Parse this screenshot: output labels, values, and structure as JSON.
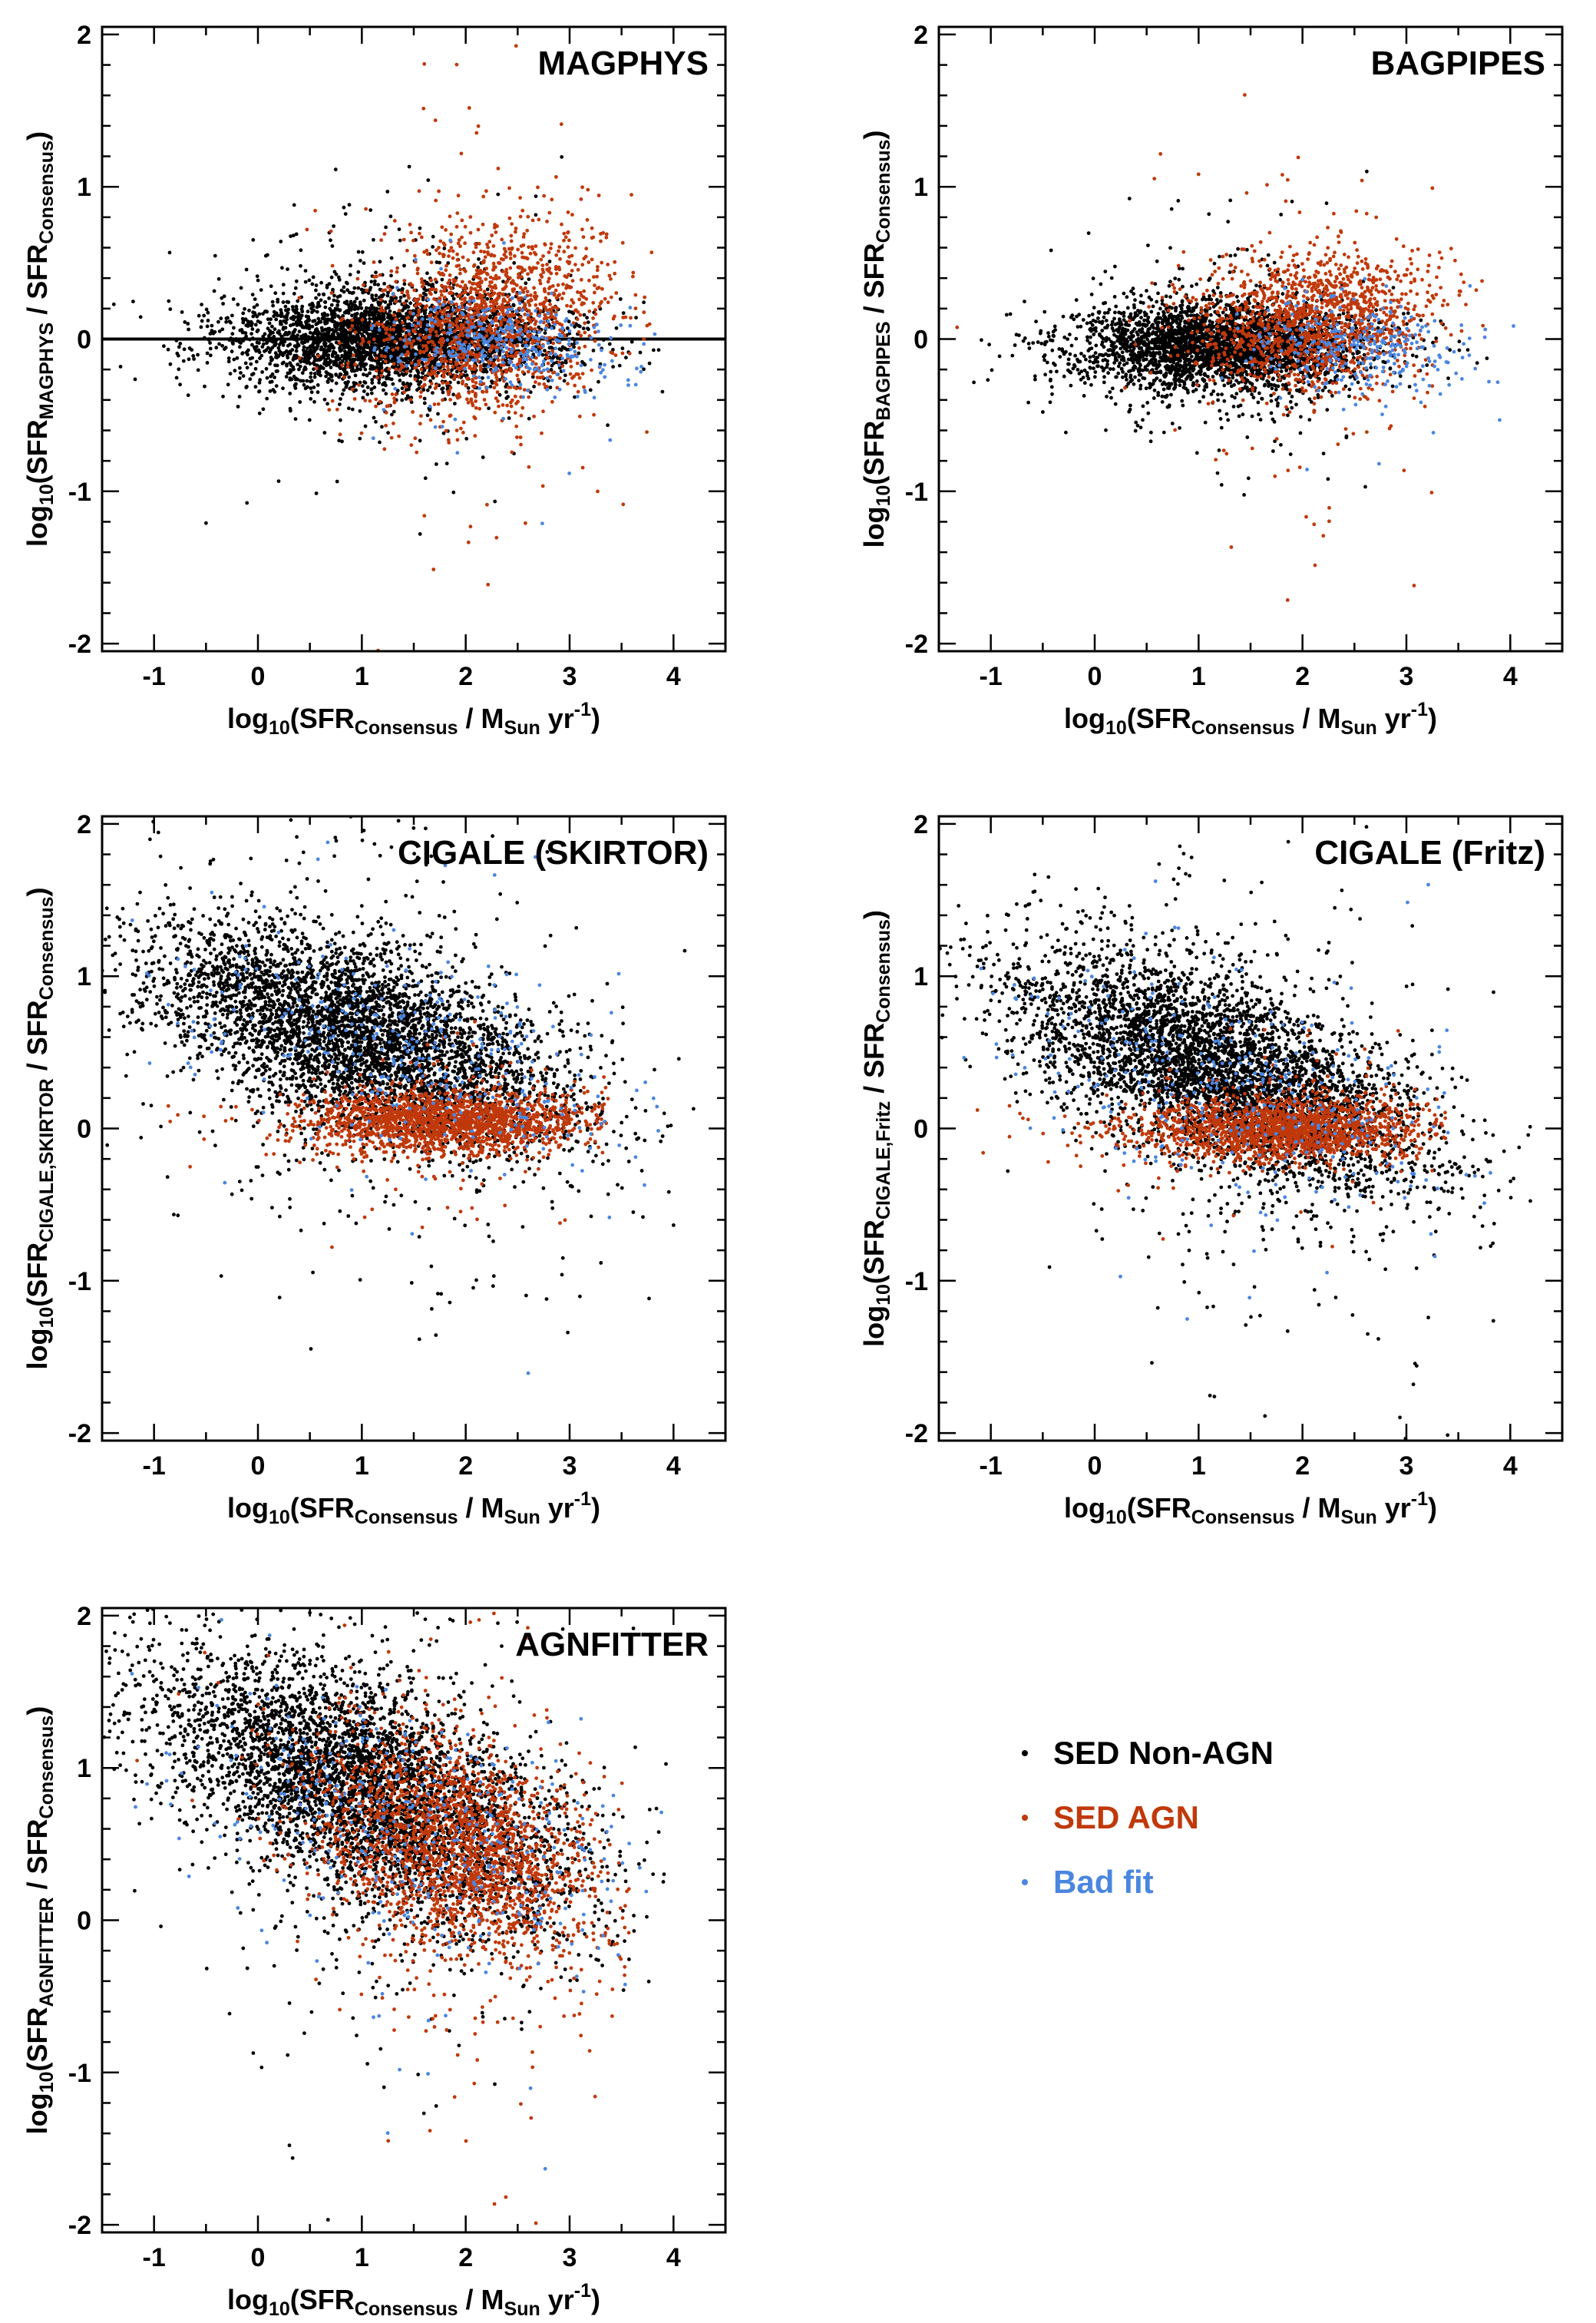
{
  "legend": {
    "entries": [
      {
        "label": "SED Non-AGN",
        "color": "#000000"
      },
      {
        "label": "SED AGN",
        "color": "#c0390b"
      },
      {
        "label": "Bad fit",
        "color": "#4a86e0"
      }
    ]
  },
  "chart_data": [
    {
      "type": "scatter",
      "title": "MAGPHYS",
      "xlabel": {
        "main": "log",
        "sub1": "10",
        "mid": "(SFR",
        "sub2": "Consensus",
        "tail": " / M",
        "sub3": "Sun",
        "tail2": " yr",
        "sup": "-1",
        "end": ")"
      },
      "ylabel": {
        "main": "log",
        "sub1": "10",
        "mid": "(SFR",
        "sub2": "MAGPHYS",
        "tail": " / SFR",
        "sub3": "Consensus",
        "end": ")"
      },
      "xlim": [
        -1.5,
        4.5
      ],
      "ylim": [
        -2.05,
        2.05
      ],
      "xticks": [
        -1,
        0,
        1,
        2,
        3,
        4
      ],
      "yticks": [
        -2,
        -1,
        0,
        1,
        2
      ],
      "reference_line_y": 0,
      "series": [
        {
          "name": "SED Non-AGN",
          "color": "#000000",
          "n": 3200,
          "trend": {
            "x_mean": 1.3,
            "x_sd": 0.8,
            "x_min": -1.4,
            "x_max": 4.1,
            "y0": 0.0,
            "slope": 0.0,
            "y_sd": 0.16
          }
        },
        {
          "name": "SED AGN",
          "color": "#c0390b",
          "n": 1500,
          "trend": {
            "x_mean": 2.2,
            "x_sd": 0.6,
            "x_min": -1.4,
            "x_max": 3.8,
            "y0": 0.05,
            "slope": 0.12,
            "y_sd": 0.3
          }
        },
        {
          "name": "Bad fit",
          "color": "#4a86e0",
          "n": 350,
          "trend": {
            "x_mean": 2.3,
            "x_sd": 0.55,
            "x_min": -1.2,
            "x_max": 4.0,
            "y0": 0.0,
            "slope": -0.03,
            "y_sd": 0.15
          }
        }
      ]
    },
    {
      "type": "scatter",
      "title": "BAGPIPES",
      "xlabel": {
        "main": "log",
        "sub1": "10",
        "mid": "(SFR",
        "sub2": "Consensus",
        "tail": " / M",
        "sub3": "Sun",
        "tail2": " yr",
        "sup": "-1",
        "end": ")"
      },
      "ylabel": {
        "main": "log",
        "sub1": "10",
        "mid": "(SFR",
        "sub2": "BAGPIPES",
        "tail": " / SFR",
        "sub3": "Consensus",
        "end": ")"
      },
      "xlim": [
        -1.5,
        4.5
      ],
      "ylim": [
        -2.05,
        2.05
      ],
      "xticks": [
        -1,
        0,
        1,
        2,
        3,
        4
      ],
      "yticks": [
        -2,
        -1,
        0,
        1,
        2
      ],
      "series": [
        {
          "name": "SED Non-AGN",
          "color": "#000000",
          "n": 3200,
          "trend": {
            "x_mean": 1.2,
            "x_sd": 0.7,
            "x_min": -1.4,
            "x_max": 4.1,
            "y0": -0.05,
            "slope": 0.0,
            "y_sd": 0.14
          }
        },
        {
          "name": "SED AGN",
          "color": "#c0390b",
          "n": 1400,
          "trend": {
            "x_mean": 2.1,
            "x_sd": 0.6,
            "x_min": -1.4,
            "x_max": 3.9,
            "y0": 0.1,
            "slope": 0.03,
            "y_sd": 0.22
          }
        },
        {
          "name": "Bad fit",
          "color": "#4a86e0",
          "n": 300,
          "trend": {
            "x_mean": 2.6,
            "x_sd": 0.55,
            "x_min": -1.0,
            "x_max": 4.1,
            "y0": 0.0,
            "slope": -0.05,
            "y_sd": 0.15
          }
        }
      ]
    },
    {
      "type": "scatter",
      "title": "CIGALE (SKIRTOR)",
      "xlabel": {
        "main": "log",
        "sub1": "10",
        "mid": "(SFR",
        "sub2": "Consensus",
        "tail": " / M",
        "sub3": "Sun",
        "tail2": " yr",
        "sup": "-1",
        "end": ")"
      },
      "ylabel": {
        "main": "log",
        "sub1": "10",
        "mid": "(SFR",
        "sub2": "CIGALE,SKIRTOR",
        "tail": " / SFR",
        "sub3": "Consensus",
        "end": ")"
      },
      "xlim": [
        -1.5,
        4.5
      ],
      "ylim": [
        -2.05,
        2.05
      ],
      "xticks": [
        -1,
        0,
        1,
        2,
        3,
        4
      ],
      "yticks": [
        -2,
        -1,
        0,
        1,
        2
      ],
      "series": [
        {
          "name": "SED Non-AGN",
          "color": "#000000",
          "n": 4500,
          "trend": {
            "x_mean": 1.0,
            "x_sd": 1.0,
            "x_min": -1.5,
            "x_max": 4.3,
            "y0": 0.5,
            "slope": -0.2,
            "y_sd": 0.3
          }
        },
        {
          "name": "SED AGN",
          "color": "#c0390b",
          "n": 1800,
          "trend": {
            "x_mean": 1.8,
            "x_sd": 0.7,
            "x_min": -1.2,
            "x_max": 3.4,
            "y0": 0.05,
            "slope": 0.0,
            "y_sd": 0.1
          }
        },
        {
          "name": "Bad fit",
          "color": "#4a86e0",
          "n": 350,
          "trend": {
            "x_mean": 1.5,
            "x_sd": 1.1,
            "x_min": -1.4,
            "x_max": 4.0,
            "y0": 0.5,
            "slope": -0.2,
            "y_sd": 0.3
          }
        }
      ]
    },
    {
      "type": "scatter",
      "title": "CIGALE (Fritz)",
      "xlabel": {
        "main": "log",
        "sub1": "10",
        "mid": "(SFR",
        "sub2": "Consensus",
        "tail": " / M",
        "sub3": "Sun",
        "tail2": " yr",
        "sup": "-1",
        "end": ")"
      },
      "ylabel": {
        "main": "log",
        "sub1": "10",
        "mid": "(SFR",
        "sub2": "CIGALE,Fritz",
        "tail": " / SFR",
        "sub3": "Consensus",
        "end": ")"
      },
      "xlim": [
        -1.5,
        4.5
      ],
      "ylim": [
        -2.05,
        2.05
      ],
      "xticks": [
        -1,
        0,
        1,
        2,
        3,
        4
      ],
      "yticks": [
        -2,
        -1,
        0,
        1,
        2
      ],
      "series": [
        {
          "name": "SED Non-AGN",
          "color": "#000000",
          "n": 4500,
          "trend": {
            "x_mean": 1.2,
            "x_sd": 1.0,
            "x_min": -1.5,
            "x_max": 4.2,
            "y0": 0.3,
            "slope": -0.25,
            "y_sd": 0.3
          }
        },
        {
          "name": "SED AGN",
          "color": "#c0390b",
          "n": 1800,
          "trend": {
            "x_mean": 1.8,
            "x_sd": 0.7,
            "x_min": -1.2,
            "x_max": 3.4,
            "y0": 0.0,
            "slope": 0.0,
            "y_sd": 0.1
          }
        },
        {
          "name": "Bad fit",
          "color": "#4a86e0",
          "n": 350,
          "trend": {
            "x_mean": 1.5,
            "x_sd": 1.1,
            "x_min": -1.4,
            "x_max": 4.0,
            "y0": 0.2,
            "slope": -0.2,
            "y_sd": 0.35
          }
        }
      ]
    },
    {
      "type": "scatter",
      "title": "AGNFITTER",
      "xlabel": {
        "main": "log",
        "sub1": "10",
        "mid": "(SFR",
        "sub2": "Consensus",
        "tail": " / M",
        "sub3": "Sun",
        "tail2": " yr",
        "sup": "-1",
        "end": ")"
      },
      "ylabel": {
        "main": "log",
        "sub1": "10",
        "mid": "(SFR",
        "sub2": "AGNFITTER",
        "tail": " / SFR",
        "sub3": "Consensus",
        "end": ")"
      },
      "xlim": [
        -1.5,
        4.5
      ],
      "ylim": [
        -2.05,
        2.05
      ],
      "xticks": [
        -1,
        0,
        1,
        2,
        3,
        4
      ],
      "yticks": [
        -2,
        -1,
        0,
        1,
        2
      ],
      "series": [
        {
          "name": "SED Non-AGN",
          "color": "#000000",
          "n": 4500,
          "trend": {
            "x_mean": 1.0,
            "x_sd": 1.0,
            "x_min": -1.5,
            "x_max": 4.0,
            "y0": 0.75,
            "slope": -0.25,
            "y_sd": 0.35
          }
        },
        {
          "name": "SED AGN",
          "color": "#c0390b",
          "n": 2200,
          "trend": {
            "x_mean": 1.9,
            "x_sd": 0.7,
            "x_min": -1.2,
            "x_max": 3.6,
            "y0": 0.55,
            "slope": -0.2,
            "y_sd": 0.35
          }
        },
        {
          "name": "Bad fit",
          "color": "#4a86e0",
          "n": 400,
          "trend": {
            "x_mean": 1.5,
            "x_sd": 1.1,
            "x_min": -1.4,
            "x_max": 4.0,
            "y0": 0.6,
            "slope": -0.2,
            "y_sd": 0.4
          }
        }
      ]
    }
  ]
}
